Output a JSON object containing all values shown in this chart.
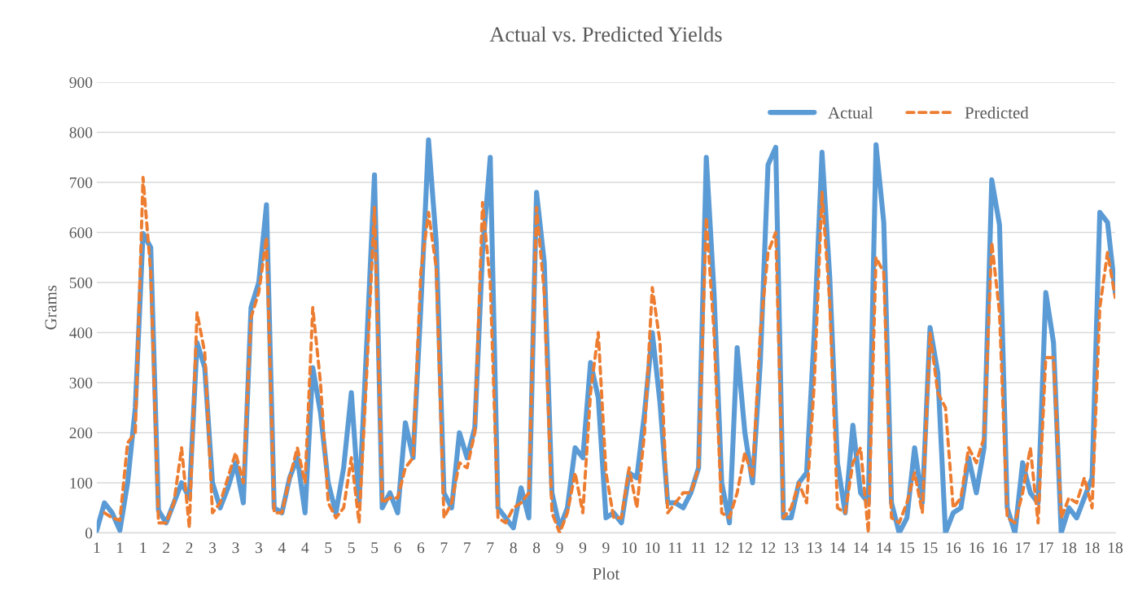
{
  "chart_data": {
    "type": "line",
    "title": "Actual vs. Predicted Yields",
    "xlabel": "Plot",
    "ylabel": "Grams",
    "categories": [
      "1",
      null,
      null,
      "1",
      null,
      null,
      "1",
      null,
      null,
      "2",
      null,
      null,
      "2",
      null,
      null,
      "3",
      null,
      null,
      "3",
      null,
      null,
      "3",
      null,
      null,
      "4",
      null,
      null,
      "4",
      null,
      null,
      "5",
      null,
      null,
      "5",
      null,
      null,
      "5",
      null,
      null,
      "6",
      null,
      null,
      "6",
      null,
      null,
      "7",
      null,
      null,
      "7",
      null,
      null,
      "7",
      null,
      null,
      "8",
      null,
      null,
      "8",
      null,
      null,
      "9",
      null,
      null,
      "9",
      null,
      null,
      "9",
      null,
      null,
      "10",
      null,
      null,
      "10",
      null,
      null,
      "11",
      null,
      null,
      "11",
      null,
      null,
      "12",
      null,
      null,
      "12",
      null,
      null,
      "12",
      null,
      null,
      "13",
      null,
      null,
      "13",
      null,
      null,
      "14",
      null,
      null,
      "14",
      null,
      null,
      "14",
      null,
      null,
      "15",
      null,
      null,
      "15",
      null,
      null,
      "16",
      null,
      null,
      "16",
      null,
      null,
      "16",
      null,
      null,
      "17",
      null,
      null,
      "17",
      null,
      null,
      "18",
      null,
      null,
      "18",
      null,
      null,
      "18"
    ],
    "series": [
      {
        "name": "Actual",
        "color": "#5b9bd5",
        "line_style": "solid",
        "values": [
          5,
          60,
          40,
          5,
          100,
          250,
          598,
          570,
          45,
          20,
          60,
          100,
          70,
          380,
          330,
          100,
          50,
          90,
          140,
          60,
          450,
          500,
          655,
          50,
          40,
          110,
          150,
          40,
          330,
          240,
          100,
          40,
          130,
          280,
          60,
          380,
          715,
          50,
          80,
          40,
          220,
          150,
          450,
          785,
          580,
          80,
          50,
          200,
          150,
          210,
          560,
          750,
          50,
          30,
          10,
          90,
          30,
          680,
          540,
          80,
          10,
          50,
          170,
          150,
          340,
          270,
          30,
          40,
          20,
          120,
          110,
          240,
          400,
          260,
          60,
          60,
          50,
          80,
          130,
          750,
          480,
          100,
          20,
          370,
          200,
          100,
          340,
          735,
          770,
          30,
          30,
          100,
          120,
          400,
          760,
          510,
          140,
          40,
          215,
          80,
          60,
          775,
          620,
          60,
          0,
          30,
          170,
          60,
          410,
          320,
          0,
          40,
          50,
          150,
          80,
          170,
          705,
          615,
          50,
          0,
          140,
          80,
          60,
          480,
          380,
          0,
          50,
          30,
          70,
          110,
          640,
          620,
          480
        ]
      },
      {
        "name": "Predicted",
        "color": "#ed7d31",
        "line_style": "dashed",
        "values": [
          null,
          40,
          30,
          25,
          180,
          200,
          710,
          520,
          20,
          20,
          60,
          170,
          10,
          440,
          360,
          40,
          60,
          110,
          160,
          100,
          430,
          480,
          590,
          40,
          40,
          110,
          170,
          100,
          450,
          300,
          60,
          30,
          50,
          150,
          20,
          320,
          650,
          60,
          70,
          70,
          130,
          150,
          520,
          640,
          530,
          30,
          60,
          140,
          130,
          200,
          660,
          500,
          30,
          20,
          50,
          60,
          80,
          650,
          480,
          40,
          0,
          40,
          120,
          40,
          280,
          400,
          120,
          30,
          30,
          130,
          50,
          200,
          490,
          380,
          40,
          60,
          80,
          80,
          130,
          630,
          400,
          40,
          30,
          80,
          160,
          110,
          400,
          560,
          600,
          30,
          50,
          100,
          60,
          300,
          680,
          460,
          50,
          40,
          140,
          170,
          0,
          550,
          520,
          30,
          20,
          60,
          120,
          40,
          400,
          280,
          250,
          50,
          70,
          170,
          140,
          190,
          580,
          440,
          30,
          20,
          80,
          170,
          20,
          350,
          350,
          30,
          70,
          60,
          110,
          50,
          450,
          560,
          470
        ]
      }
    ],
    "ylim": [
      0,
      900
    ],
    "yticks": [
      0,
      100,
      200,
      300,
      400,
      500,
      600,
      700,
      800,
      900
    ],
    "grid": "y",
    "legend": "top right"
  }
}
